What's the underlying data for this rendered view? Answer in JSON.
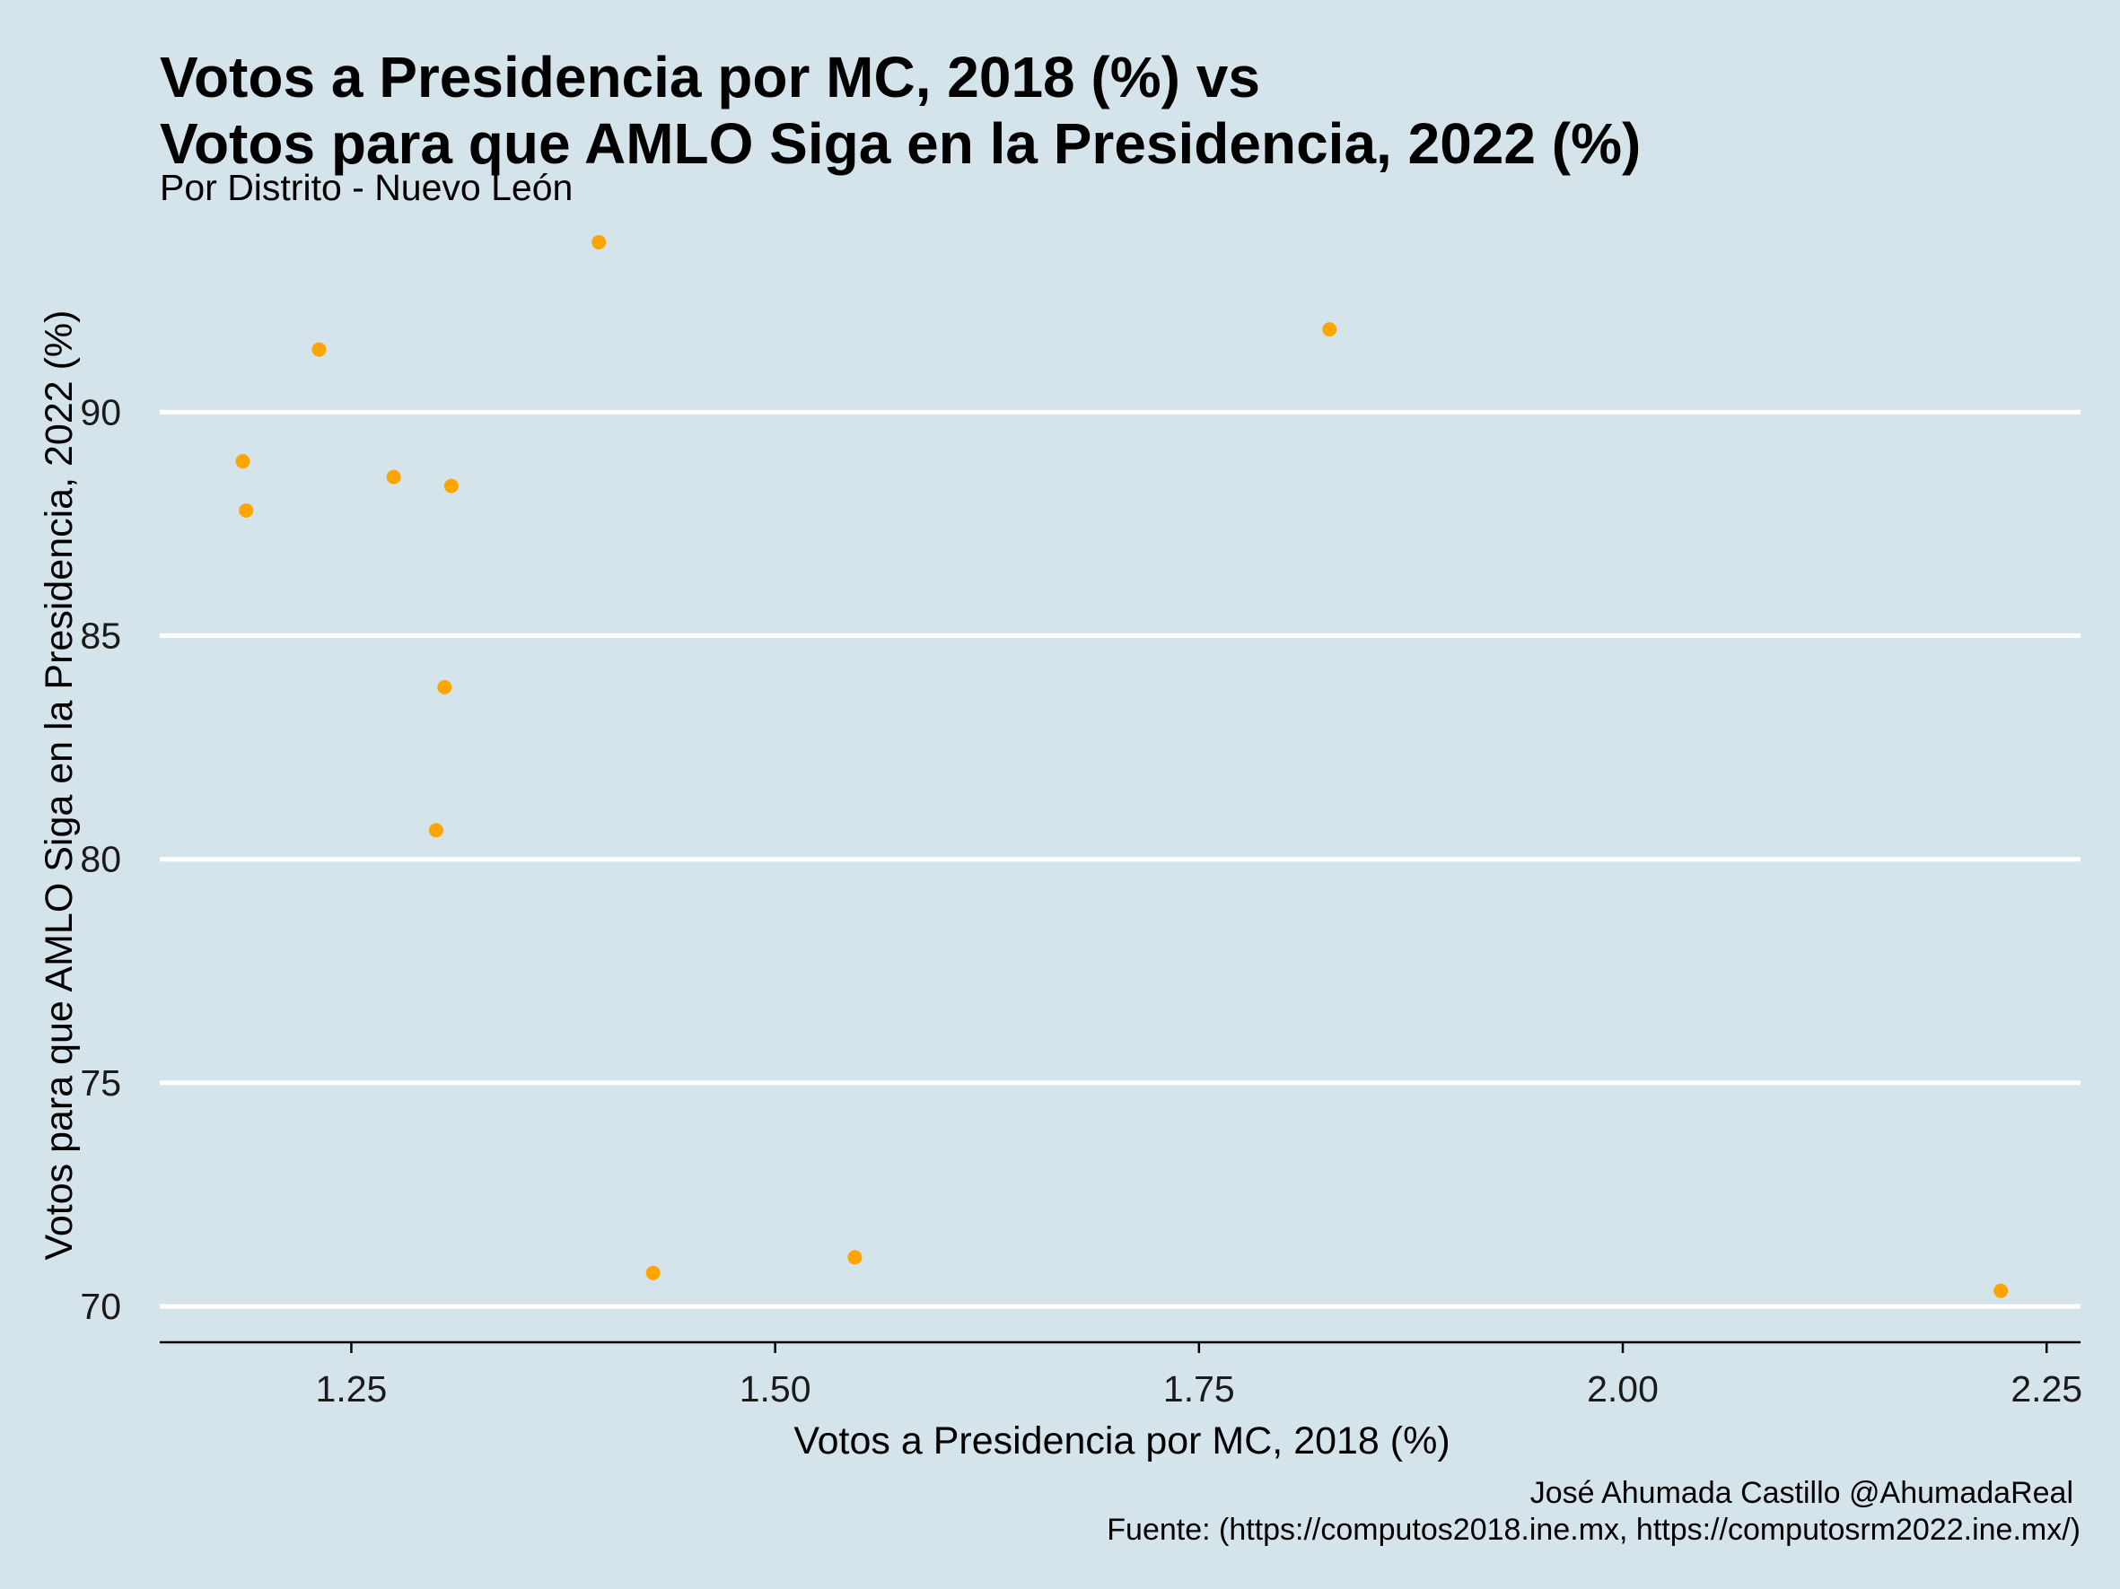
{
  "chart_data": {
    "type": "scatter",
    "title_line1": "Votos a Presidencia por MC, 2018 (%) vs",
    "title_line2": "Votos para que AMLO Siga en la Presidencia, 2022 (%)",
    "subtitle": "Por Distrito - Nuevo León",
    "xlabel": "Votos a Presidencia por MC, 2018 (%)",
    "ylabel": "Votos para que AMLO Siga en la Presidencia, 2022 (%)",
    "caption_line1": "José Ahumada Castillo @AhumadaReal",
    "caption_line2": "Fuente: (https://computos2018.ine.mx, https://computosrm2022.ine.mx/)",
    "xlim": [
      1.137,
      2.27
    ],
    "ylim": [
      69.2,
      94.0
    ],
    "x_ticks": [
      1.25,
      1.5,
      1.75,
      2.0,
      2.25
    ],
    "x_tick_labels": [
      "1.25",
      "1.50",
      "1.75",
      "2.00",
      "2.25"
    ],
    "y_ticks": [
      70,
      75,
      80,
      85,
      90
    ],
    "y_tick_labels": [
      "70",
      "75",
      "80",
      "85",
      "90"
    ],
    "grid": "horizontal major lines only",
    "legend": "none",
    "point_color": "#ffa500",
    "background_color": "#d5e4eb",
    "gridline_color": "#ffffff",
    "points": [
      {
        "x": 1.396,
        "y": 93.8
      },
      {
        "x": 1.827,
        "y": 91.85
      },
      {
        "x": 1.231,
        "y": 91.4
      },
      {
        "x": 1.186,
        "y": 88.9
      },
      {
        "x": 1.275,
        "y": 88.55
      },
      {
        "x": 1.309,
        "y": 88.35
      },
      {
        "x": 1.188,
        "y": 87.8
      },
      {
        "x": 1.305,
        "y": 83.85
      },
      {
        "x": 1.3,
        "y": 80.65
      },
      {
        "x": 1.547,
        "y": 71.1
      },
      {
        "x": 1.428,
        "y": 70.75
      },
      {
        "x": 2.223,
        "y": 70.35
      }
    ]
  }
}
